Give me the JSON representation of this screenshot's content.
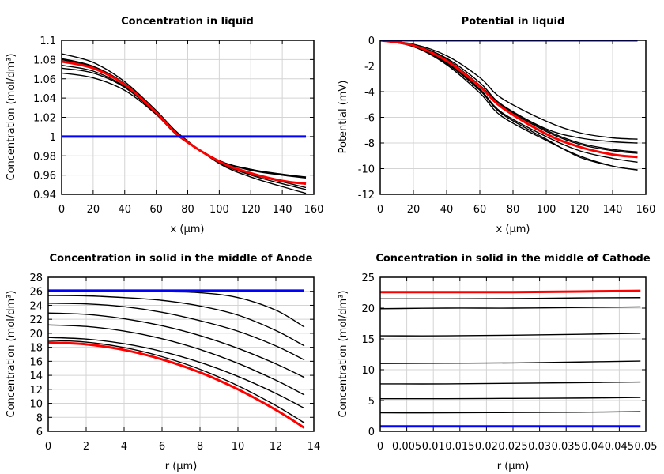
{
  "chart_data": [
    {
      "type": "line",
      "title": "Concentration in liquid",
      "xlabel": "x (µm)",
      "ylabel": "Concentration (mol/dm³)",
      "xlim": [
        0,
        160
      ],
      "ylim": [
        0.94,
        1.1
      ],
      "xticks": [
        0,
        20,
        40,
        60,
        80,
        100,
        120,
        140,
        160
      ],
      "yticks": [
        0.94,
        0.96,
        0.98,
        1,
        1.02,
        1.04,
        1.06,
        1.08,
        1.1
      ],
      "xtick_labels": [
        "0",
        "20",
        "40",
        "60",
        "80",
        "100",
        "120",
        "140",
        "160"
      ],
      "ytick_labels": [
        "0.94",
        "0.96",
        "0.98",
        "1",
        "1.02",
        "1.04",
        "1.06",
        "1.08",
        "1.1"
      ],
      "grid": true,
      "x": [
        0,
        20,
        40,
        60,
        75,
        100,
        120,
        140,
        155
      ],
      "series": [
        {
          "color": "#000000",
          "values": [
            1.086,
            1.077,
            1.057,
            1.027,
            1.002,
            0.972,
            0.958,
            0.948,
            0.941
          ]
        },
        {
          "color": "#000000",
          "values": [
            1.081,
            1.073,
            1.055,
            1.026,
            1.001,
            0.973,
            0.96,
            0.951,
            0.945
          ]
        },
        {
          "color": "#000000",
          "values": [
            1.08,
            1.072,
            1.055,
            1.026,
            1.001,
            0.973,
            0.961,
            0.953,
            0.947
          ]
        },
        {
          "color": "#000000",
          "values": [
            1.074,
            1.068,
            1.052,
            1.025,
            1.0,
            0.975,
            0.965,
            0.96,
            0.957
          ]
        },
        {
          "color": "#000000",
          "values": [
            1.071,
            1.066,
            1.051,
            1.024,
            1.0,
            0.975,
            0.966,
            0.96,
            0.958
          ]
        },
        {
          "color": "#000000",
          "values": [
            1.066,
            1.061,
            1.048,
            1.023,
            0.999,
            0.975,
            0.966,
            0.961,
            0.958
          ]
        },
        {
          "color": "#ff0000",
          "values": [
            1.078,
            1.071,
            1.054,
            1.025,
            1.0,
            0.974,
            0.962,
            0.954,
            0.951
          ]
        },
        {
          "color": "#0000ff",
          "values": [
            1,
            1,
            1,
            1,
            1,
            1,
            1,
            1,
            1
          ]
        }
      ]
    },
    {
      "type": "line",
      "title": "Potential in liquid",
      "xlabel": "x (µm)",
      "ylabel": "Potential (mV)",
      "xlim": [
        0,
        160
      ],
      "ylim": [
        -12,
        0
      ],
      "xticks": [
        0,
        20,
        40,
        60,
        80,
        100,
        120,
        140,
        160
      ],
      "yticks": [
        -12,
        -10,
        -8,
        -6,
        -4,
        -2,
        0
      ],
      "xtick_labels": [
        "0",
        "20",
        "40",
        "60",
        "80",
        "100",
        "120",
        "140",
        "160"
      ],
      "ytick_labels": [
        "-12",
        "-10",
        "-8",
        "-6",
        "-4",
        "-2",
        "0"
      ],
      "grid": true,
      "x": [
        0,
        20,
        40,
        60,
        73,
        100,
        120,
        140,
        155
      ],
      "series": [
        {
          "color": "#000000",
          "values": [
            0,
            -0.3,
            -1.2,
            -2.9,
            -4.5,
            -6.3,
            -7.2,
            -7.6,
            -7.7
          ]
        },
        {
          "color": "#000000",
          "values": [
            0,
            -0.35,
            -1.4,
            -3.3,
            -5.0,
            -6.9,
            -7.6,
            -7.9,
            -8.0
          ]
        },
        {
          "color": "#000000",
          "values": [
            0,
            -0.4,
            -1.5,
            -3.5,
            -5.0,
            -7.0,
            -8.0,
            -8.5,
            -8.7
          ]
        },
        {
          "color": "#000000",
          "values": [
            0,
            -0.4,
            -1.55,
            -3.6,
            -5.1,
            -7.1,
            -8.1,
            -8.6,
            -8.8
          ]
        },
        {
          "color": "#000000",
          "values": [
            0,
            -0.45,
            -1.7,
            -3.8,
            -5.6,
            -7.5,
            -8.6,
            -9.2,
            -9.5
          ]
        },
        {
          "color": "#000000",
          "values": [
            0,
            -0.5,
            -1.9,
            -4.1,
            -5.9,
            -7.8,
            -9.0,
            -9.8,
            -10.1
          ]
        },
        {
          "color": "#000000",
          "values": [
            0,
            -0.45,
            -1.8,
            -3.9,
            -5.7,
            -7.7,
            -9.1,
            -9.8,
            -10.1
          ]
        },
        {
          "color": "#ff0000",
          "values": [
            0,
            -0.4,
            -1.6,
            -3.6,
            -5.2,
            -7.3,
            -8.3,
            -8.9,
            -9.1
          ]
        },
        {
          "color": "#0000ff",
          "values": [
            0,
            0,
            0,
            0,
            0,
            0,
            0,
            0,
            0
          ]
        }
      ]
    },
    {
      "type": "line",
      "title": "Concentration in solid in the middle of Anode",
      "xlabel": "r (µm)",
      "ylabel": "Concentration (mol/dm³)",
      "xlim": [
        0,
        14
      ],
      "ylim": [
        6,
        28
      ],
      "xticks": [
        0,
        2,
        4,
        6,
        8,
        10,
        12,
        14
      ],
      "yticks": [
        6,
        8,
        10,
        12,
        14,
        16,
        18,
        20,
        22,
        24,
        26,
        28
      ],
      "xtick_labels": [
        "0",
        "2",
        "4",
        "6",
        "8",
        "10",
        "12",
        "14"
      ],
      "ytick_labels": [
        "6",
        "8",
        "10",
        "12",
        "14",
        "16",
        "18",
        "20",
        "22",
        "24",
        "26",
        "28"
      ],
      "grid": true,
      "x": [
        0,
        2,
        4,
        6,
        8,
        10,
        12,
        13.5
      ],
      "series": [
        {
          "color": "#000000",
          "values": [
            26.05,
            26.05,
            26.0,
            25.95,
            25.8,
            25.1,
            23.3,
            20.9
          ]
        },
        {
          "color": "#000000",
          "values": [
            25.4,
            25.35,
            25.1,
            24.7,
            23.9,
            22.6,
            20.4,
            18.2
          ]
        },
        {
          "color": "#000000",
          "values": [
            24.3,
            24.2,
            23.8,
            23.0,
            21.8,
            20.3,
            18.2,
            16.2
          ]
        },
        {
          "color": "#000000",
          "values": [
            22.9,
            22.7,
            22.09,
            21.08,
            19.67,
            17.85,
            15.63,
            13.7
          ]
        },
        {
          "color": "#000000",
          "values": [
            21.2,
            20.98,
            20.32,
            19.22,
            17.69,
            15.71,
            13.3,
            11.2
          ]
        },
        {
          "color": "#000000",
          "values": [
            19.4,
            19.18,
            18.51,
            17.4,
            15.85,
            13.85,
            11.42,
            9.3
          ]
        },
        {
          "color": "#000000",
          "values": [
            19.0,
            18.74,
            17.96,
            16.66,
            14.86,
            12.52,
            9.68,
            7.2
          ]
        },
        {
          "color": "#ff0000",
          "values": [
            18.7,
            18.43,
            17.63,
            16.28,
            14.42,
            12.0,
            9.06,
            6.5
          ]
        },
        {
          "color": "#0000ff",
          "values": [
            26.1,
            26.1,
            26.1,
            26.1,
            26.1,
            26.1,
            26.1,
            26.1
          ]
        }
      ]
    },
    {
      "type": "line",
      "title": "Concentration in solid in the middle of Cathode",
      "xlabel": "r (µm)",
      "ylabel": "Concentration (mol/dm³)",
      "xlim": [
        0,
        0.05
      ],
      "ylim": [
        0,
        25
      ],
      "xticks": [
        0,
        0.005,
        0.01,
        0.015,
        0.02,
        0.025,
        0.03,
        0.035,
        0.04,
        0.045,
        0.05
      ],
      "yticks": [
        0,
        5,
        10,
        15,
        20,
        25
      ],
      "xtick_labels": [
        "0",
        "0.005",
        "0.01",
        "0.015",
        "0.02",
        "0.025",
        "0.03",
        "0.035",
        "0.04",
        "0.045",
        "0.05"
      ],
      "ytick_labels": [
        "0",
        "5",
        "10",
        "15",
        "20",
        "25"
      ],
      "grid": true,
      "x": [
        0,
        0.0125,
        0.025,
        0.0375,
        0.049
      ],
      "series": [
        {
          "color": "#000000",
          "values": [
            21.5,
            21.5,
            21.55,
            21.65,
            21.7
          ]
        },
        {
          "color": "#000000",
          "values": [
            19.9,
            20.0,
            20.0,
            20.1,
            20.2
          ]
        },
        {
          "color": "#000000",
          "values": [
            15.5,
            15.5,
            15.6,
            15.75,
            15.9
          ]
        },
        {
          "color": "#000000",
          "values": [
            11.0,
            11.05,
            11.1,
            11.25,
            11.4
          ]
        },
        {
          "color": "#000000",
          "values": [
            7.7,
            7.7,
            7.8,
            7.9,
            8.0
          ]
        },
        {
          "color": "#000000",
          "values": [
            5.3,
            5.3,
            5.35,
            5.4,
            5.5
          ]
        },
        {
          "color": "#000000",
          "values": [
            3.0,
            3.0,
            3.05,
            3.1,
            3.2
          ]
        },
        {
          "color": "#ff0000",
          "values": [
            22.6,
            22.6,
            22.6,
            22.7,
            22.8
          ]
        },
        {
          "color": "#0000ff",
          "values": [
            0.8,
            0.8,
            0.8,
            0.8,
            0.8
          ]
        }
      ]
    }
  ]
}
